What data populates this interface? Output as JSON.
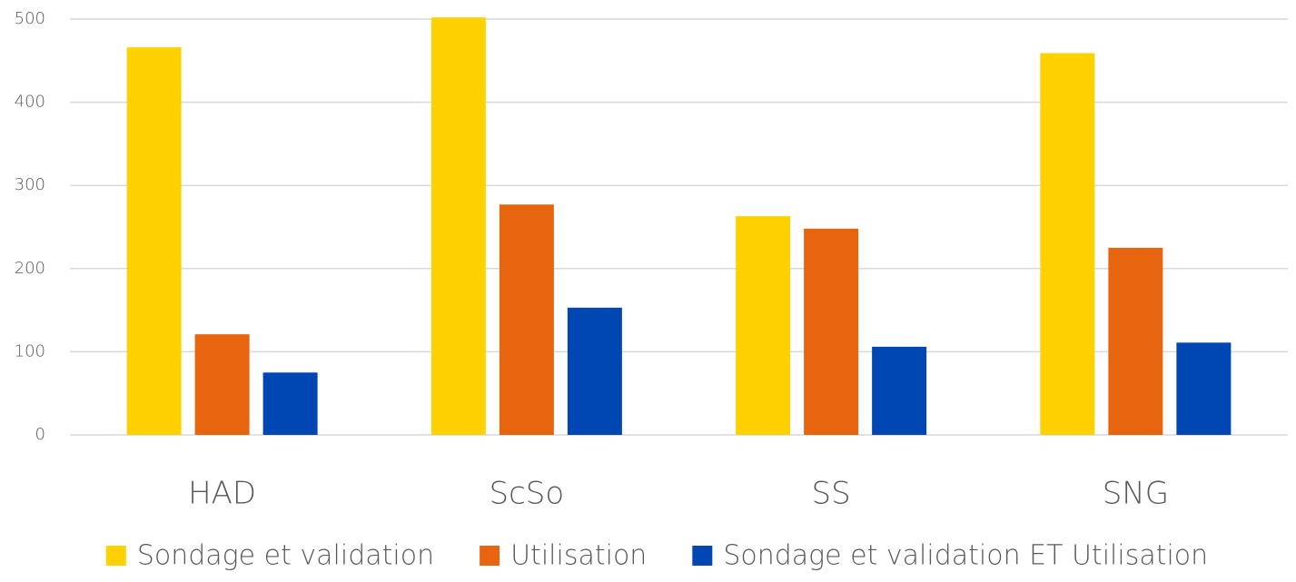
{
  "chart_data": {
    "type": "bar",
    "categories": [
      "HAD",
      "ScSo",
      "SS",
      "SNG"
    ],
    "series": [
      {
        "name": "Sondage et validation",
        "color": "#FFD100",
        "values": [
          466,
          502,
          263,
          459
        ]
      },
      {
        "name": "Utilisation",
        "color": "#E8650F",
        "values": [
          121,
          277,
          248,
          225
        ]
      },
      {
        "name": "Sondage et validation ET Utilisation",
        "color": "#0047B3",
        "values": [
          75,
          153,
          106,
          111
        ]
      }
    ],
    "ylim": [
      0,
      500
    ],
    "yticks": [
      0,
      100,
      200,
      300,
      400,
      500
    ],
    "grid": true,
    "legend": "bottom"
  }
}
